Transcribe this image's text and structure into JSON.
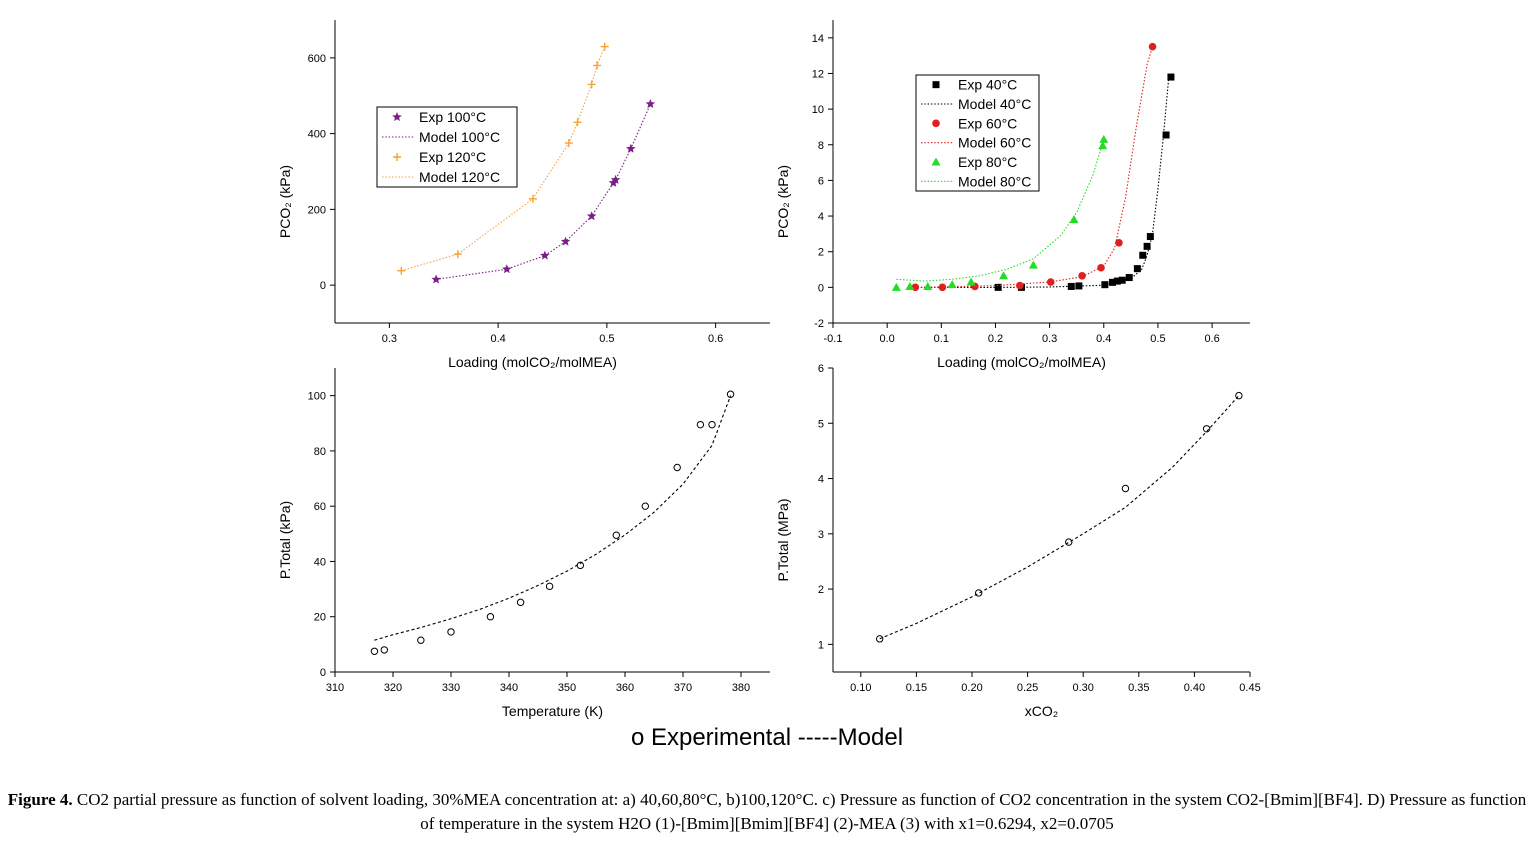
{
  "figure": {
    "shared_legend": "o Experimental  -----Model",
    "caption_label": "Figure 4.",
    "caption_text": " CO2 partial pressure as function of solvent loading, 30%MEA concentration at: a) 40,60,80°C, b)100,120°C. c) Pressure as function of CO2 concentration in the system CO2-[Bmim][BF4]. D) Pressure as function of temperature in the system H2O (1)-[Bmim][Bmim][BF4] (2)-MEA (3) with x1=0.6294, x2=0.0705"
  },
  "chart_data": [
    {
      "id": "a",
      "type": "scatter",
      "xlabel": "Loading (molCO₂/molMEA)",
      "ylabel": "PCO₂ (kPa)",
      "xlim": [
        0.25,
        0.65
      ],
      "ylim": [
        -100,
        700
      ],
      "xticks": [
        0.3,
        0.4,
        0.5,
        0.6
      ],
      "yticks": [
        0,
        200,
        400,
        600
      ],
      "ytick_labels": [
        "0",
        "200",
        "400",
        "600"
      ],
      "xtick_labels": [
        "0.3",
        "0.4",
        "0.5",
        "0.6"
      ],
      "legend": "top-left",
      "series": [
        {
          "name": "Exp 100°C",
          "marker": "star",
          "color": "#7a1f86",
          "x": [
            0.343,
            0.408,
            0.443,
            0.462,
            0.486,
            0.506,
            0.508,
            0.522,
            0.54
          ],
          "y": [
            15,
            42,
            78,
            115,
            182,
            270,
            278,
            360,
            478
          ]
        },
        {
          "name": "Model 100°C",
          "line": "dotted",
          "color": "#7a1f86",
          "x": [
            0.343,
            0.408,
            0.443,
            0.462,
            0.486,
            0.506,
            0.508,
            0.522,
            0.54
          ],
          "y": [
            15,
            42,
            78,
            115,
            182,
            270,
            278,
            360,
            478
          ]
        },
        {
          "name": "Exp 120°C",
          "marker": "plus",
          "color": "#f5a233",
          "x": [
            0.311,
            0.363,
            0.432,
            0.465,
            0.473,
            0.486,
            0.491,
            0.498
          ],
          "y": [
            38,
            82,
            228,
            375,
            430,
            530,
            580,
            630
          ]
        },
        {
          "name": "Model 120°C",
          "line": "dotted",
          "color": "#f5a233",
          "x": [
            0.311,
            0.363,
            0.432,
            0.465,
            0.473,
            0.486,
            0.491,
            0.498
          ],
          "y": [
            38,
            82,
            228,
            375,
            430,
            530,
            580,
            630
          ]
        }
      ]
    },
    {
      "id": "b",
      "type": "scatter",
      "xlabel": "Loading (molCO₂/molMEA)",
      "ylabel": "PCO₂ (kPa)",
      "xlim": [
        -0.1,
        0.67
      ],
      "ylim": [
        -2,
        15
      ],
      "xticks": [
        -0.1,
        0.0,
        0.1,
        0.2,
        0.3,
        0.4,
        0.5,
        0.6
      ],
      "yticks": [
        -2,
        0,
        2,
        4,
        6,
        8,
        10,
        12,
        14
      ],
      "xtick_labels": [
        "-0.1",
        "0.0",
        "0.1",
        "0.2",
        "0.3",
        "0.4",
        "0.5",
        "0.6"
      ],
      "ytick_labels": [
        "-2",
        "0",
        "2",
        "4",
        "6",
        "8",
        "10",
        "12",
        "14"
      ],
      "legend": "top-left",
      "series": [
        {
          "name": "Exp 40°C",
          "marker": "square",
          "color": "#000000",
          "x": [
            0.205,
            0.248,
            0.34,
            0.354,
            0.402,
            0.416,
            0.425,
            0.434,
            0.447,
            0.462,
            0.472,
            0.48,
            0.486,
            0.515,
            0.524
          ],
          "y": [
            0.0,
            0.0,
            0.05,
            0.08,
            0.15,
            0.28,
            0.35,
            0.4,
            0.55,
            1.05,
            1.8,
            2.3,
            2.85,
            8.55,
            11.8
          ]
        },
        {
          "name": "Model 40°C",
          "line": "dotted",
          "color": "#000000",
          "x": [
            0.05,
            0.1,
            0.2,
            0.3,
            0.4,
            0.45,
            0.47,
            0.48,
            0.49,
            0.5,
            0.51,
            0.52
          ],
          "y": [
            0.0,
            0.0,
            0.0,
            0.02,
            0.12,
            0.5,
            1.0,
            1.8,
            3.0,
            5.5,
            8.5,
            11.8
          ]
        },
        {
          "name": "Exp 60°C",
          "marker": "circle",
          "color": "#e02020",
          "x": [
            0.052,
            0.102,
            0.162,
            0.245,
            0.302,
            0.36,
            0.395,
            0.428,
            0.49
          ],
          "y": [
            0.0,
            0.0,
            0.05,
            0.1,
            0.3,
            0.65,
            1.1,
            2.5,
            13.5
          ]
        },
        {
          "name": "Model 60°C",
          "line": "dotted",
          "color": "#e02020",
          "x": [
            0.05,
            0.1,
            0.2,
            0.3,
            0.36,
            0.4,
            0.42,
            0.44,
            0.46,
            0.48,
            0.49
          ],
          "y": [
            0.0,
            0.02,
            0.1,
            0.3,
            0.6,
            1.2,
            2.2,
            5.0,
            9.0,
            12.5,
            13.5
          ]
        },
        {
          "name": "Exp 80°C",
          "marker": "triangle",
          "color": "#22dd22",
          "x": [
            0.017,
            0.042,
            0.075,
            0.12,
            0.155,
            0.215,
            0.27,
            0.345,
            0.398,
            0.4
          ],
          "y": [
            0.0,
            0.05,
            0.05,
            0.15,
            0.3,
            0.65,
            1.25,
            3.8,
            7.95,
            8.3
          ]
        },
        {
          "name": "Model 80°C",
          "line": "dotted",
          "color": "#22dd22",
          "x": [
            0.017,
            0.07,
            0.12,
            0.17,
            0.22,
            0.27,
            0.32,
            0.35,
            0.38,
            0.4
          ],
          "y": [
            0.45,
            0.35,
            0.45,
            0.65,
            1.0,
            1.6,
            2.9,
            4.2,
            6.3,
            8.3
          ]
        }
      ]
    },
    {
      "id": "c",
      "type": "scatter",
      "xlabel": "Temperature (K)",
      "ylabel": "P.Total (kPa)",
      "xlim": [
        310,
        385
      ],
      "ylim": [
        0,
        110
      ],
      "xticks": [
        310,
        320,
        330,
        340,
        350,
        360,
        370,
        380
      ],
      "yticks": [
        0,
        20,
        40,
        60,
        80,
        100
      ],
      "xtick_labels": [
        "310",
        "320",
        "330",
        "340",
        "350",
        "360",
        "370",
        "380"
      ],
      "ytick_labels": [
        "0",
        "20",
        "40",
        "60",
        "80",
        "100"
      ],
      "series": [
        {
          "name": "Experimental",
          "marker": "open-circle",
          "color": "#000000",
          "x": [
            316.8,
            318.5,
            324.8,
            330.0,
            336.8,
            342.0,
            347.0,
            352.3,
            358.5,
            363.5,
            369.0,
            373.0,
            375.0,
            378.2
          ],
          "y": [
            7.5,
            8.0,
            11.5,
            14.5,
            20.0,
            25.2,
            31.0,
            38.6,
            49.5,
            60.0,
            74.0,
            89.5,
            89.5,
            100.5
          ]
        },
        {
          "name": "Model",
          "line": "dashed",
          "color": "#000000",
          "x": [
            316.8,
            320,
            325,
            330,
            335,
            340,
            345,
            350,
            355,
            360,
            365,
            370,
            375,
            378.2
          ],
          "y": [
            11.5,
            13.5,
            16.2,
            19.3,
            22.7,
            26.7,
            31.3,
            36.5,
            42.6,
            49.6,
            57.8,
            68.0,
            82.0,
            100.0
          ]
        }
      ]
    },
    {
      "id": "d",
      "type": "scatter",
      "xlabel": "xCO₂",
      "ylabel": "P.Total (MPa)",
      "xlim": [
        0.075,
        0.45
      ],
      "ylim": [
        0.5,
        6
      ],
      "xticks": [
        0.1,
        0.15,
        0.2,
        0.25,
        0.3,
        0.35,
        0.4,
        0.45
      ],
      "yticks": [
        1,
        2,
        3,
        4,
        5,
        6
      ],
      "xtick_labels": [
        "0.10",
        "0.15",
        "0.20",
        "0.25",
        "0.30",
        "0.35",
        "0.40",
        "0.45"
      ],
      "ytick_labels": [
        "1",
        "2",
        "3",
        "4",
        "5",
        "6"
      ],
      "series": [
        {
          "name": "Experimental",
          "marker": "open-circle",
          "color": "#000000",
          "x": [
            0.117,
            0.206,
            0.287,
            0.338,
            0.411,
            0.44
          ],
          "y": [
            1.1,
            1.93,
            2.85,
            3.82,
            4.9,
            5.5
          ]
        },
        {
          "name": "Model",
          "line": "dashed",
          "color": "#000000",
          "x": [
            0.117,
            0.15,
            0.2,
            0.25,
            0.3,
            0.338,
            0.38,
            0.411,
            0.44
          ],
          "y": [
            1.1,
            1.38,
            1.86,
            2.4,
            3.0,
            3.48,
            4.2,
            4.85,
            5.5
          ]
        }
      ]
    }
  ]
}
